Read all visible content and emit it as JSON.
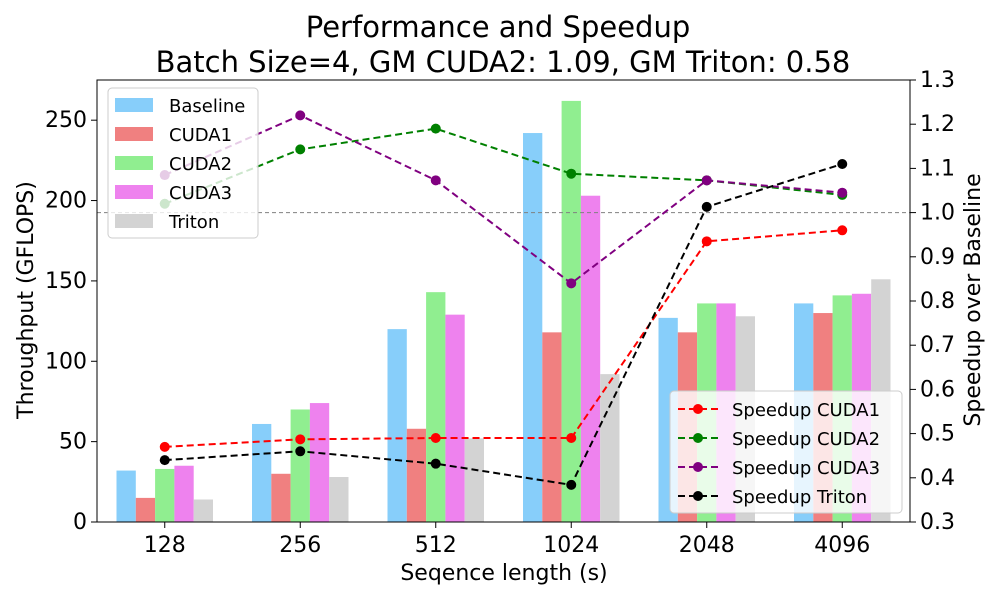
{
  "chart_data": {
    "type": "bar",
    "title_line1": "Performance and Speedup",
    "title_line2": "Batch Size=4, GM CUDA2: 1.09, GM Triton: 0.58",
    "xlabel": "Seqence length (s)",
    "ylabel": "Throughput (GFLOPS)",
    "ylabel_right": "Speedup over Baseline",
    "categories": [
      "128",
      "256",
      "512",
      "1024",
      "2048",
      "4096"
    ],
    "ylim": [
      0,
      275
    ],
    "yticks": [
      0,
      50,
      100,
      150,
      200,
      250
    ],
    "ylim_right": [
      0.3,
      1.3
    ],
    "yticks_right": [
      "0.3",
      "0.4",
      "0.5",
      "0.6",
      "0.7",
      "0.8",
      "0.9",
      "1.0",
      "1.1",
      "1.2",
      "1.3"
    ],
    "reference_line_right": 1.0,
    "bar_series": [
      {
        "name": "Baseline",
        "color": "#87cefa",
        "values": [
          32,
          61,
          120,
          242,
          127,
          136
        ]
      },
      {
        "name": "CUDA1",
        "color": "#f08080",
        "values": [
          15,
          30,
          58,
          118,
          118,
          130
        ]
      },
      {
        "name": "CUDA2",
        "color": "#90ee90",
        "values": [
          33,
          70,
          143,
          262,
          136,
          141
        ]
      },
      {
        "name": "CUDA3",
        "color": "#ee82ee",
        "values": [
          35,
          74,
          129,
          203,
          136,
          142
        ]
      },
      {
        "name": "Triton",
        "color": "#d3d3d3",
        "values": [
          14,
          28,
          52,
          92,
          128,
          151
        ]
      }
    ],
    "line_series": [
      {
        "name": "Speedup CUDA1",
        "color": "#ff0000",
        "values": [
          0.47,
          0.487,
          0.49,
          0.49,
          0.935,
          0.96
        ]
      },
      {
        "name": "Speedup CUDA2",
        "color": "#008000",
        "values": [
          1.02,
          1.143,
          1.19,
          1.088,
          1.073,
          1.04
        ]
      },
      {
        "name": "Speedup CUDA3",
        "color": "#800080",
        "values": [
          1.085,
          1.22,
          1.073,
          0.84,
          1.073,
          1.045
        ]
      },
      {
        "name": "Speedup Triton",
        "color": "#000000",
        "values": [
          0.44,
          0.46,
          0.432,
          0.384,
          1.013,
          1.11
        ]
      }
    ],
    "legend_bars_placement": "top-left",
    "legend_lines_placement": "bottom-right",
    "grid": false
  }
}
